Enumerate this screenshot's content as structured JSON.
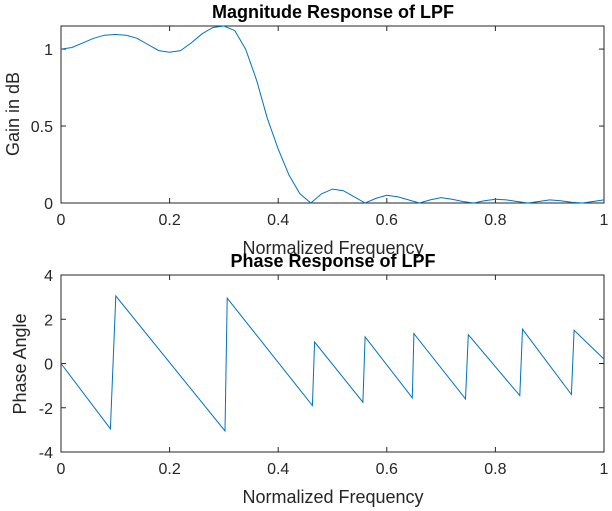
{
  "chart_data": [
    {
      "type": "line",
      "title": "Magnitude Response of LPF",
      "xlabel": "Normalized Frequency",
      "ylabel": "Gain in dB",
      "xlim": [
        0,
        1
      ],
      "ylim": [
        0,
        1.15
      ],
      "xticks": [
        0,
        0.2,
        0.4,
        0.6,
        0.8,
        1
      ],
      "xtick_labels": [
        "0",
        "0.2",
        "0.4",
        "0.6",
        "0.8",
        "1"
      ],
      "yticks": [
        0,
        0.5,
        1
      ],
      "ytick_labels": [
        "0",
        "0.5",
        "1"
      ],
      "grid": false,
      "line_color": "#0072BD",
      "series": [
        {
          "x": [
            0,
            0.02,
            0.04,
            0.06,
            0.08,
            0.1,
            0.12,
            0.14,
            0.16,
            0.18,
            0.2,
            0.22,
            0.24,
            0.26,
            0.28,
            0.3,
            0.32,
            0.34,
            0.36,
            0.38,
            0.4,
            0.42,
            0.44,
            0.46,
            0.48,
            0.5,
            0.52,
            0.54,
            0.56,
            0.58,
            0.6,
            0.62,
            0.64,
            0.66,
            0.68,
            0.7,
            0.72,
            0.74,
            0.76,
            0.78,
            0.8,
            0.82,
            0.84,
            0.86,
            0.88,
            0.9,
            0.92,
            0.94,
            0.96,
            0.98,
            1.0
          ],
          "y": [
            1.0,
            1.01,
            1.04,
            1.07,
            1.09,
            1.095,
            1.09,
            1.07,
            1.03,
            0.99,
            0.98,
            0.99,
            1.04,
            1.1,
            1.14,
            1.15,
            1.12,
            1.0,
            0.8,
            0.55,
            0.35,
            0.18,
            0.06,
            0.0,
            0.06,
            0.09,
            0.08,
            0.04,
            0.0,
            0.03,
            0.05,
            0.04,
            0.02,
            0.0,
            0.02,
            0.035,
            0.025,
            0.01,
            0.0,
            0.015,
            0.025,
            0.02,
            0.01,
            0.0,
            0.01,
            0.02,
            0.015,
            0.005,
            0.0,
            0.01,
            0.02
          ]
        }
      ]
    },
    {
      "type": "line",
      "title": "Phase Response of LPF",
      "xlabel": "Normalized Frequency",
      "ylabel": "Phase Angle",
      "xlim": [
        0,
        1
      ],
      "ylim": [
        -4,
        4
      ],
      "xticks": [
        0,
        0.2,
        0.4,
        0.6,
        0.8,
        1
      ],
      "xtick_labels": [
        "0",
        "0.2",
        "0.4",
        "0.6",
        "0.8",
        "1"
      ],
      "yticks": [
        -4,
        -2,
        0,
        2,
        4
      ],
      "ytick_labels": [
        "-4",
        "-2",
        "0",
        "2",
        "4"
      ],
      "grid": false,
      "line_color": "#0072BD",
      "series": [
        {
          "x": [
            0,
            0.091,
            0.101,
            0.302,
            0.306,
            0.463,
            0.467,
            0.556,
            0.56,
            0.647,
            0.65,
            0.745,
            0.75,
            0.845,
            0.85,
            0.94,
            0.945,
            1.0
          ],
          "y": [
            0,
            -2.95,
            3.05,
            -3.05,
            2.95,
            -1.9,
            0.97,
            -1.75,
            1.2,
            -1.55,
            1.35,
            -1.6,
            1.3,
            -1.45,
            1.55,
            -1.4,
            1.5,
            0.2
          ]
        }
      ]
    }
  ]
}
